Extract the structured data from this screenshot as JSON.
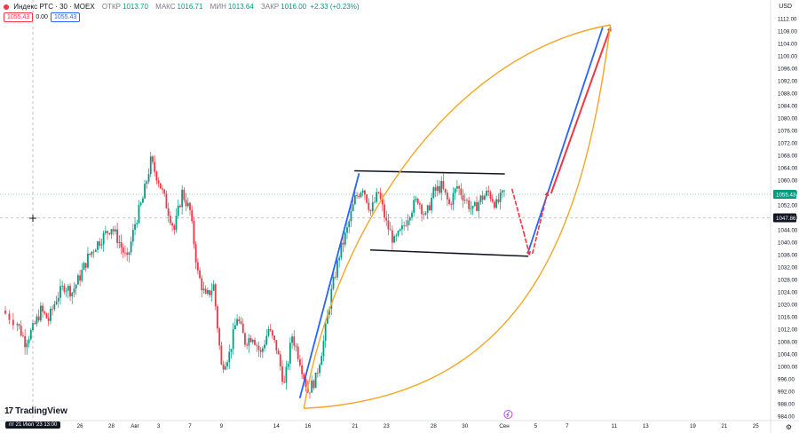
{
  "header": {
    "symbol": "Индекс РТС · 30 · MOEX",
    "open_label": "ОТКР",
    "open": "1013.70",
    "high_label": "МАКС",
    "high": "1016.71",
    "low_label": "МИН",
    "low": "1013.64",
    "close_label": "ЗАКР",
    "close": "1016.00",
    "change": "+2.33 (+0.23%)",
    "sell_price": "1055.43",
    "spread": "0.00",
    "buy_price": "1055.43",
    "currency": "USD"
  },
  "footer": {
    "brand": "TradingView",
    "brand_mark": "17",
    "cursor_date": "пт 21 Июл '23 13:00",
    "settings_icon": "gear-icon",
    "event_icon": "lightning-icon"
  },
  "chart_data": {
    "type": "candlestick",
    "y_axis": {
      "range": [
        984,
        1113
      ],
      "ticks": [
        1112,
        1108,
        1104,
        1100,
        1096,
        1092,
        1088,
        1084,
        1080,
        1076,
        1072,
        1068,
        1064,
        1060,
        1056,
        1052,
        1048,
        1044,
        1040,
        1036,
        1032,
        1028,
        1024,
        1020,
        1016,
        1012,
        1008,
        1004,
        1000,
        996,
        992,
        988,
        984
      ],
      "tick_labels": [
        "1112.00",
        "1108.00",
        "1104.00",
        "1100.00",
        "1096.00",
        "1092.00",
        "1088.00",
        "1084.00",
        "1080.00",
        "1076.00",
        "1072.00",
        "1068.00",
        "1064.00",
        "1060.00",
        "1056.00",
        "1052.00",
        "1048.00",
        "1044.00",
        "1040.00",
        "1036.00",
        "1032.00",
        "1028.00",
        "1024.00",
        "1020.00",
        "1016.00",
        "1012.00",
        "1008.00",
        "1004.00",
        "1000.00",
        "996.00",
        "992.00",
        "988.00",
        "984.00"
      ]
    },
    "x_axis": {
      "ticks": [
        {
          "label": "26",
          "x": 6
        },
        {
          "label": "28",
          "x": 10
        },
        {
          "label": "Авг",
          "x": 13
        },
        {
          "label": "3",
          "x": 16
        },
        {
          "label": "7",
          "x": 20
        },
        {
          "label": "9",
          "x": 24
        },
        {
          "label": "14",
          "x": 31
        },
        {
          "label": "16",
          "x": 35
        },
        {
          "label": "21",
          "x": 41
        },
        {
          "label": "23",
          "x": 45
        },
        {
          "label": "28",
          "x": 51
        },
        {
          "label": "30",
          "x": 55
        },
        {
          "label": "Сен",
          "x": 60
        },
        {
          "label": "5",
          "x": 64
        },
        {
          "label": "7",
          "x": 68
        },
        {
          "label": "11",
          "x": 74
        },
        {
          "label": "13",
          "x": 78
        },
        {
          "label": "19",
          "x": 84
        },
        {
          "label": "21",
          "x": 88
        },
        {
          "label": "25",
          "x": 92
        }
      ]
    },
    "price_anchors": [
      [
        -4,
        1018
      ],
      [
        -2,
        1014
      ],
      [
        -1,
        1008
      ],
      [
        0,
        1012
      ],
      [
        1,
        1018
      ],
      [
        2,
        1015
      ],
      [
        3,
        1022
      ],
      [
        4,
        1026
      ],
      [
        5,
        1024
      ],
      [
        6,
        1029
      ],
      [
        7,
        1035
      ],
      [
        8,
        1039
      ],
      [
        9,
        1042
      ],
      [
        10,
        1045
      ],
      [
        11,
        1040
      ],
      [
        12,
        1034
      ],
      [
        13,
        1046
      ],
      [
        14,
        1054
      ],
      [
        15,
        1066
      ],
      [
        16,
        1060
      ],
      [
        17,
        1052
      ],
      [
        18,
        1044
      ],
      [
        19,
        1056
      ],
      [
        20,
        1050
      ],
      [
        21,
        1030
      ],
      [
        22,
        1022
      ],
      [
        23,
        1026
      ],
      [
        24,
        1000
      ],
      [
        25,
        1004
      ],
      [
        26,
        1016
      ],
      [
        27,
        1008
      ],
      [
        28,
        1010
      ],
      [
        29,
        1004
      ],
      [
        30,
        1012
      ],
      [
        31,
        1006
      ],
      [
        32,
        994
      ],
      [
        33,
        1010
      ],
      [
        34,
        1002
      ],
      [
        35,
        992
      ],
      [
        36,
        996
      ],
      [
        37,
        1008
      ],
      [
        38,
        1024
      ],
      [
        39,
        1036
      ],
      [
        40,
        1044
      ],
      [
        41,
        1054
      ],
      [
        42,
        1058
      ],
      [
        43,
        1050
      ],
      [
        44,
        1056
      ],
      [
        45,
        1046
      ],
      [
        46,
        1040
      ],
      [
        47,
        1044
      ],
      [
        48,
        1050
      ],
      [
        49,
        1054
      ],
      [
        50,
        1048
      ],
      [
        51,
        1056
      ],
      [
        52,
        1058
      ],
      [
        53,
        1052
      ],
      [
        54,
        1058
      ],
      [
        55,
        1054
      ],
      [
        56,
        1050
      ],
      [
        57,
        1054
      ],
      [
        58,
        1056
      ],
      [
        59,
        1052
      ],
      [
        60,
        1056
      ]
    ],
    "cursor_price": "1047.86",
    "cursor_price_value": 1047.86,
    "last_price": "1055.43",
    "last_price_value": 1055.43,
    "drawings": {
      "channel_top": [
        [
          41,
          1063
        ],
        [
          60,
          1062
        ]
      ],
      "channel_bottom": [
        [
          43,
          1037.5
        ],
        [
          63,
          1035.5
        ]
      ],
      "blue_lines": [
        [
          [
            34,
            990
          ],
          [
            41.5,
            1062
          ]
        ],
        [
          [
            63,
            1036.5
          ],
          [
            72.5,
            1109
          ]
        ]
      ],
      "red_line": [
        [
          66,
          1056
        ],
        [
          73.5,
          1109
        ]
      ],
      "dashed_red": [
        [
          [
            61,
            1057
          ],
          [
            62.5,
            1043
          ],
          [
            63.2,
            1036
          ]
        ],
        [
          [
            63.6,
            1036.5
          ],
          [
            65.5,
            1056
          ]
        ]
      ],
      "orange_curve_outer": [
        [
          34.5,
          986.5
        ],
        [
          38,
          1040
        ],
        [
          52,
          1100
        ],
        [
          73.5,
          1110
        ]
      ],
      "orange_curve_inner": [
        [
          34.5,
          986.5
        ],
        [
          62,
          990
        ],
        [
          70,
          1040
        ],
        [
          73.5,
          1110
        ]
      ]
    }
  }
}
